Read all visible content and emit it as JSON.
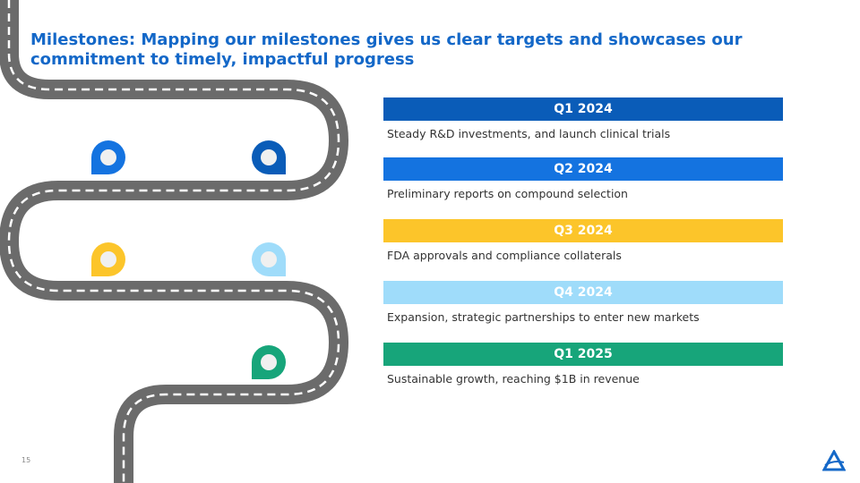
{
  "slide": {
    "title": "Milestones: Mapping our milestones gives us clear targets and showcases our commitment to timely, impactful progress",
    "page_number": "15"
  },
  "milestones": [
    {
      "label": "Q1 2024",
      "description": "Steady R&D investments, and launch clinical trials",
      "color": "#0a5cb8"
    },
    {
      "label": "Q2 2024",
      "description": "Preliminary reports on compound selection",
      "color": "#1473e0"
    },
    {
      "label": "Q3 2024",
      "description": "FDA approvals and compliance collaterals",
      "color": "#fcc52a"
    },
    {
      "label": "Q4 2024",
      "description": "Expansion, strategic partnerships to enter new markets",
      "color": "#9fdcfa"
    },
    {
      "label": "Q1 2025",
      "description": "Sustainable growth, reaching $1B in revenue",
      "color": "#17a57a"
    }
  ],
  "road": {
    "color": "#6b6b6b",
    "dash_color": "#ffffff"
  },
  "markers": [
    {
      "icon": "location-pin-icon",
      "color": "#1473e0"
    },
    {
      "icon": "location-pin-icon",
      "color": "#0a5cb8"
    },
    {
      "icon": "location-pin-icon",
      "color": "#fcc52a"
    },
    {
      "icon": "location-pin-icon",
      "color": "#9fdcfa"
    },
    {
      "icon": "location-pin-icon",
      "color": "#17a57a"
    }
  ],
  "logo": {
    "icon": "company-logo-icon",
    "color": "#1468c8"
  }
}
